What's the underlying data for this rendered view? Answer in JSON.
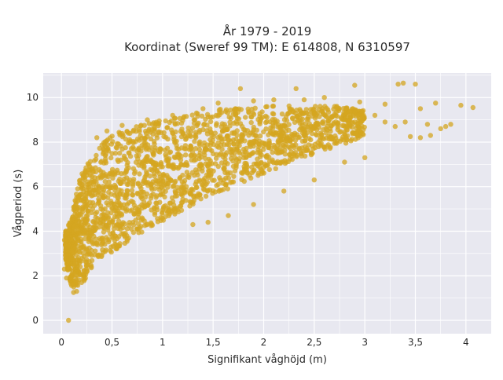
{
  "chart_data": {
    "type": "scatter",
    "title_lines": [
      "År 1979 - 2019",
      "Koordinat (Sweref 99 TM): E 614808, N 6310597"
    ],
    "xlabel": "Signifikant våghöjd (m)",
    "ylabel": "Vågperiod (s)",
    "xlim": [
      -0.18,
      4.25
    ],
    "ylim": [
      -0.6,
      11.1
    ],
    "x_ticks": [
      0,
      0.5,
      1,
      1.5,
      2,
      2.5,
      3,
      3.5,
      4
    ],
    "x_tick_labels": [
      "0",
      "0,5",
      "1",
      "1,5",
      "2",
      "2,5",
      "3",
      "3,5",
      "4"
    ],
    "y_ticks": [
      0,
      2,
      4,
      6,
      8,
      10
    ],
    "y_tick_labels": [
      "0",
      "2",
      "4",
      "6",
      "8",
      "10"
    ],
    "grid": true,
    "background_color": "#e8e8f0",
    "grid_color": "#ffffff",
    "marker_color": "#d4a520",
    "marker_opacity": 0.75,
    "envelope": {
      "description": "Dense point cloud bounds (x in m, y in s)",
      "upper": [
        [
          0.02,
          3.8
        ],
        [
          0.1,
          4.6
        ],
        [
          0.15,
          5.8
        ],
        [
          0.2,
          6.6
        ],
        [
          0.3,
          7.3
        ],
        [
          0.4,
          7.9
        ],
        [
          0.5,
          8.3
        ],
        [
          0.7,
          8.7
        ],
        [
          1.0,
          9.0
        ],
        [
          1.3,
          9.3
        ],
        [
          1.6,
          9.5
        ],
        [
          2.0,
          9.6
        ],
        [
          2.4,
          9.7
        ],
        [
          2.8,
          9.6
        ],
        [
          3.0,
          9.4
        ]
      ],
      "lower": [
        [
          0.02,
          3.2
        ],
        [
          0.1,
          1.4
        ],
        [
          0.2,
          1.6
        ],
        [
          0.3,
          2.3
        ],
        [
          0.5,
          3.0
        ],
        [
          0.7,
          3.7
        ],
        [
          0.9,
          4.2
        ],
        [
          1.1,
          4.7
        ],
        [
          1.3,
          5.2
        ],
        [
          1.6,
          5.8
        ],
        [
          2.0,
          6.6
        ],
        [
          2.4,
          7.3
        ],
        [
          2.8,
          7.9
        ],
        [
          3.0,
          8.3
        ]
      ]
    },
    "sample_points": [
      [
        0.07,
        0.0
      ],
      [
        1.77,
        10.4
      ],
      [
        2.32,
        10.4
      ],
      [
        2.9,
        10.55
      ],
      [
        3.33,
        10.6
      ],
      [
        3.38,
        10.65
      ],
      [
        3.5,
        10.6
      ],
      [
        3.95,
        9.65
      ],
      [
        4.07,
        9.55
      ],
      [
        3.85,
        8.8
      ],
      [
        3.75,
        8.6
      ],
      [
        3.65,
        8.3
      ],
      [
        3.55,
        9.5
      ],
      [
        3.7,
        9.75
      ],
      [
        3.2,
        9.7
      ],
      [
        3.1,
        9.2
      ],
      [
        2.95,
        9.8
      ],
      [
        2.6,
        10.0
      ],
      [
        2.4,
        9.9
      ],
      [
        2.1,
        9.9
      ],
      [
        1.9,
        9.85
      ],
      [
        3.45,
        8.25
      ],
      [
        3.55,
        8.2
      ],
      [
        3.62,
        8.8
      ],
      [
        3.8,
        8.7
      ],
      [
        3.3,
        8.7
      ],
      [
        3.4,
        8.9
      ],
      [
        3.2,
        8.9
      ],
      [
        1.65,
        4.7
      ],
      [
        1.45,
        4.4
      ],
      [
        1.3,
        4.3
      ],
      [
        1.9,
        5.2
      ],
      [
        2.2,
        5.8
      ],
      [
        2.5,
        6.3
      ],
      [
        2.8,
        7.1
      ],
      [
        3.0,
        7.3
      ],
      [
        0.03,
        3.6
      ],
      [
        0.04,
        2.9
      ],
      [
        0.03,
        2.3
      ],
      [
        0.05,
        1.9
      ],
      [
        0.12,
        1.25
      ],
      [
        0.15,
        1.3
      ],
      [
        0.35,
        8.2
      ],
      [
        0.45,
        8.5
      ],
      [
        0.6,
        8.75
      ],
      [
        0.85,
        9.0
      ],
      [
        1.1,
        9.2
      ],
      [
        1.4,
        9.5
      ],
      [
        1.55,
        9.75
      ]
    ]
  }
}
